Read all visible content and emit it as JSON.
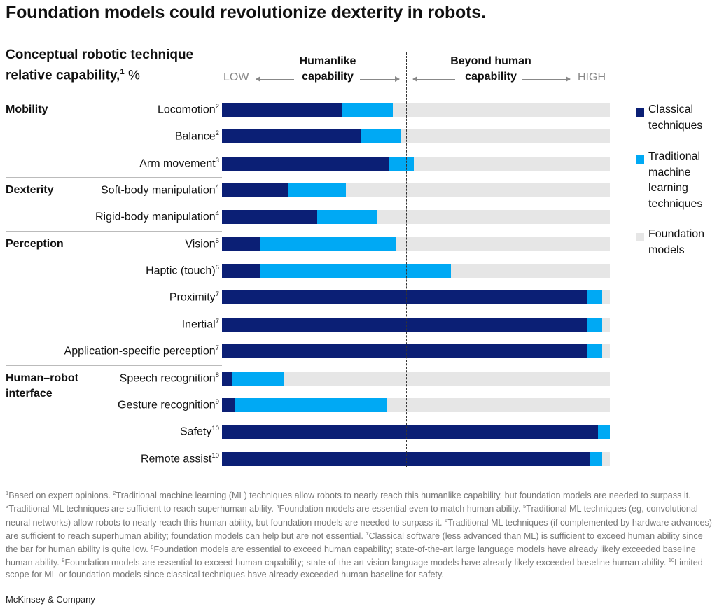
{
  "title": "Foundation models could revolutionize dexterity in robots.",
  "chart_data": {
    "type": "bar",
    "orientation": "horizontal",
    "stacked": true,
    "title": "Foundation models could revolutionize dexterity in robots.",
    "subtitle": {
      "line1": "Conceptual robotic technique",
      "line2": "relative capability,",
      "sup": "1",
      "unit": " %"
    },
    "axis": {
      "low": "LOW",
      "high": "HIGH",
      "humanlike": [
        "Humanlike",
        "capability"
      ],
      "beyond": [
        "Beyond human",
        "capability"
      ],
      "human_threshold": 47.5,
      "xlim": [
        0,
        100
      ]
    },
    "groups": [
      {
        "name": "Mobility",
        "rows": [
          0,
          1,
          2
        ]
      },
      {
        "name": "Dexterity",
        "rows": [
          3,
          4
        ]
      },
      {
        "name": "Perception",
        "rows": [
          5,
          6,
          7,
          8,
          9
        ]
      },
      {
        "name": "Human–robot interface",
        "lines": [
          "Human–robot",
          "interface"
        ],
        "rows": [
          10,
          11,
          12,
          13
        ]
      }
    ],
    "categories": [
      {
        "label": "Locomotion",
        "sup": "2"
      },
      {
        "label": "Balance",
        "sup": "2"
      },
      {
        "label": "Arm movement",
        "sup": "3"
      },
      {
        "label": "Soft-body manipulation",
        "sup": "4"
      },
      {
        "label": "Rigid-body manipulation",
        "sup": "4"
      },
      {
        "label": "Vision",
        "sup": "5"
      },
      {
        "label": "Haptic (touch)",
        "sup": "6"
      },
      {
        "label": "Proximity",
        "sup": "7"
      },
      {
        "label": "Inertial",
        "sup": "7"
      },
      {
        "label": "Application-specific perception",
        "sup": "7"
      },
      {
        "label": "Speech recognition",
        "sup": "8"
      },
      {
        "label": "Gesture recognition",
        "sup": "9"
      },
      {
        "label": "Safety",
        "sup": "10"
      },
      {
        "label": "Remote assist",
        "sup": "10"
      }
    ],
    "series": [
      {
        "name": "Classical techniques",
        "lines": [
          "Classical",
          "techniques"
        ],
        "color": "#0b1f75",
        "values": [
          31,
          36,
          43,
          17,
          24.5,
          10,
          10,
          94,
          94,
          94,
          2.5,
          3.5,
          97,
          95
        ]
      },
      {
        "name": "Traditional machine learning techniques",
        "lines": [
          "Traditional",
          "machine",
          "learning",
          "techniques"
        ],
        "color": "#00a9f4",
        "values": [
          13,
          10,
          6.5,
          15,
          15.5,
          35,
          49,
          4,
          4,
          4,
          13.5,
          39,
          3,
          3
        ]
      },
      {
        "name": "Foundation models",
        "lines": [
          "Foundation",
          "models"
        ],
        "color": "#e6e6e6",
        "values": [
          56,
          54,
          50.5,
          68,
          60,
          55,
          41,
          2,
          2,
          2,
          84,
          57.5,
          0,
          2
        ]
      }
    ]
  },
  "footnotes": [
    {
      "n": "1",
      "text": "Based on expert opinions. "
    },
    {
      "n": "2",
      "text": "Traditional machine learning (ML) techniques allow robots to nearly reach this humanlike capability, but foundation models are needed to surpass it. "
    },
    {
      "n": "3",
      "text": "Traditional ML techniques are sufficient to reach superhuman ability. "
    },
    {
      "n": "4",
      "text": "Foundation models are essential even to match human ability. "
    },
    {
      "n": "5",
      "text": "Traditional ML techniques (eg, convolutional neural networks) allow robots to nearly reach this human ability, but foundation models are needed to surpass it. "
    },
    {
      "n": "6",
      "text": "Traditional ML techniques (if complemented by hardware advances) are sufficient to reach superhuman ability; foundation models can help but are not essential. "
    },
    {
      "n": "7",
      "text": "Classical software (less advanced than ML) is sufficient to exceed human ability since the bar for human ability is quite low. "
    },
    {
      "n": "8",
      "text": "Foundation models are essential to exceed human capability; state-of-the-art large language models have already likely exceeded baseline human ability. "
    },
    {
      "n": "9",
      "text": "Foundation models are essential to exceed human capability; state-of-the-art vision language models have already likely exceeded baseline human ability. "
    },
    {
      "n": "10",
      "text": "Limited scope for ML or foundation models since classical techniques have already exceeded human baseline for safety."
    }
  ],
  "brand": "McKinsey & Company"
}
